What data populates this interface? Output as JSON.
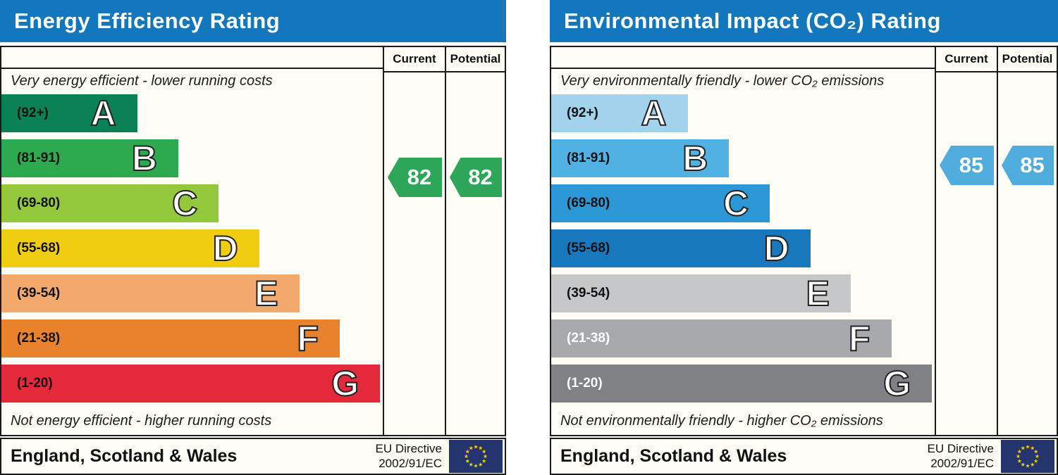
{
  "panels": [
    {
      "title": "Energy Efficiency Rating",
      "columns": {
        "current": "Current",
        "potential": "Potential"
      },
      "top_caption": "Very energy efficient - lower running costs",
      "bottom_caption": "Not energy efficient - higher running costs",
      "bands": [
        {
          "letter": "A",
          "range": "(92+)",
          "min": 92,
          "max": 100,
          "color": "#0b8156",
          "label_color": "#111111",
          "width_pct": 35.6
        },
        {
          "letter": "B",
          "range": "(81-91)",
          "min": 81,
          "max": 91,
          "color": "#2daa4f",
          "label_color": "#111111",
          "width_pct": 46.4
        },
        {
          "letter": "C",
          "range": "(69-80)",
          "min": 69,
          "max": 80,
          "color": "#93c83d",
          "label_color": "#111111",
          "width_pct": 57.0
        },
        {
          "letter": "D",
          "range": "(55-68)",
          "min": 55,
          "max": 68,
          "color": "#f0cd11",
          "label_color": "#111111",
          "width_pct": 67.6
        },
        {
          "letter": "E",
          "range": "(39-54)",
          "min": 39,
          "max": 54,
          "color": "#f3a96c",
          "label_color": "#111111",
          "width_pct": 78.1
        },
        {
          "letter": "F",
          "range": "(21-38)",
          "min": 21,
          "max": 38,
          "color": "#e9822d",
          "label_color": "#111111",
          "width_pct": 88.7
        },
        {
          "letter": "G",
          "range": "(1-20)",
          "min": 1,
          "max": 20,
          "color": "#e4293b",
          "label_color": "#111111",
          "width_pct": 99.3
        }
      ],
      "current": {
        "value": 82,
        "band_index": 1,
        "color": "#2ea659"
      },
      "potential": {
        "value": 82,
        "band_index": 1,
        "color": "#2ea659"
      },
      "footer": {
        "region": "England, Scotland & Wales",
        "directive_line1": "EU Directive",
        "directive_line2": "2002/91/EC"
      }
    },
    {
      "title": "Environmental Impact (CO₂) Rating",
      "columns": {
        "current": "Current",
        "potential": "Potential"
      },
      "top_caption": "Very environmentally friendly - lower CO₂ emissions",
      "bottom_caption": "Not environmentally friendly - higher CO₂ emissions",
      "bands": [
        {
          "letter": "A",
          "range": "(92+)",
          "min": 92,
          "max": 100,
          "color": "#a2d2ec",
          "label_color": "#111111",
          "width_pct": 35.6
        },
        {
          "letter": "B",
          "range": "(81-91)",
          "min": 81,
          "max": 91,
          "color": "#50b1e2",
          "label_color": "#111111",
          "width_pct": 46.4
        },
        {
          "letter": "C",
          "range": "(69-80)",
          "min": 69,
          "max": 80,
          "color": "#2b97d4",
          "label_color": "#111111",
          "width_pct": 57.0
        },
        {
          "letter": "D",
          "range": "(55-68)",
          "min": 55,
          "max": 68,
          "color": "#1878bd",
          "label_color": "#111111",
          "width_pct": 67.6
        },
        {
          "letter": "E",
          "range": "(39-54)",
          "min": 39,
          "max": 54,
          "color": "#c6c7c9",
          "label_color": "#111111",
          "width_pct": 78.1
        },
        {
          "letter": "F",
          "range": "(21-38)",
          "min": 21,
          "max": 38,
          "color": "#a7a9ac",
          "label_color": "#ffffff",
          "width_pct": 88.7
        },
        {
          "letter": "G",
          "range": "(1-20)",
          "min": 1,
          "max": 20,
          "color": "#7f8184",
          "label_color": "#ffffff",
          "width_pct": 99.3
        }
      ],
      "current": {
        "value": 85,
        "band_index": 1,
        "color": "#4fadde"
      },
      "potential": {
        "value": 85,
        "band_index": 1,
        "color": "#4fadde"
      },
      "footer": {
        "region": "England, Scotland & Wales",
        "directive_line1": "EU Directive",
        "directive_line2": "2002/91/EC"
      }
    }
  ],
  "chart_data": [
    {
      "type": "bar",
      "orientation": "horizontal",
      "title": "Energy Efficiency Rating",
      "categories": [
        "A (92+)",
        "B (81-91)",
        "C (69-80)",
        "D (55-68)",
        "E (39-54)",
        "F (21-38)",
        "G (1-20)"
      ],
      "band_upper_bounds": [
        100,
        91,
        80,
        68,
        54,
        38,
        20
      ],
      "series": [
        {
          "name": "Current",
          "value": 82,
          "band": "B"
        },
        {
          "name": "Potential",
          "value": 82,
          "band": "B"
        }
      ],
      "xlabel": "",
      "ylabel": "",
      "annotations": [
        "Very energy efficient - lower running costs",
        "Not energy efficient - higher running costs",
        "England, Scotland & Wales",
        "EU Directive 2002/91/EC"
      ]
    },
    {
      "type": "bar",
      "orientation": "horizontal",
      "title": "Environmental Impact (CO₂) Rating",
      "categories": [
        "A (92+)",
        "B (81-91)",
        "C (69-80)",
        "D (55-68)",
        "E (39-54)",
        "F (21-38)",
        "G (1-20)"
      ],
      "band_upper_bounds": [
        100,
        91,
        80,
        68,
        54,
        38,
        20
      ],
      "series": [
        {
          "name": "Current",
          "value": 85,
          "band": "B"
        },
        {
          "name": "Potential",
          "value": 85,
          "band": "B"
        }
      ],
      "xlabel": "",
      "ylabel": "",
      "annotations": [
        "Very environmentally friendly - lower CO₂ emissions",
        "Not environmentally friendly - higher CO₂ emissions",
        "England, Scotland & Wales",
        "EU Directive 2002/91/EC"
      ]
    }
  ]
}
